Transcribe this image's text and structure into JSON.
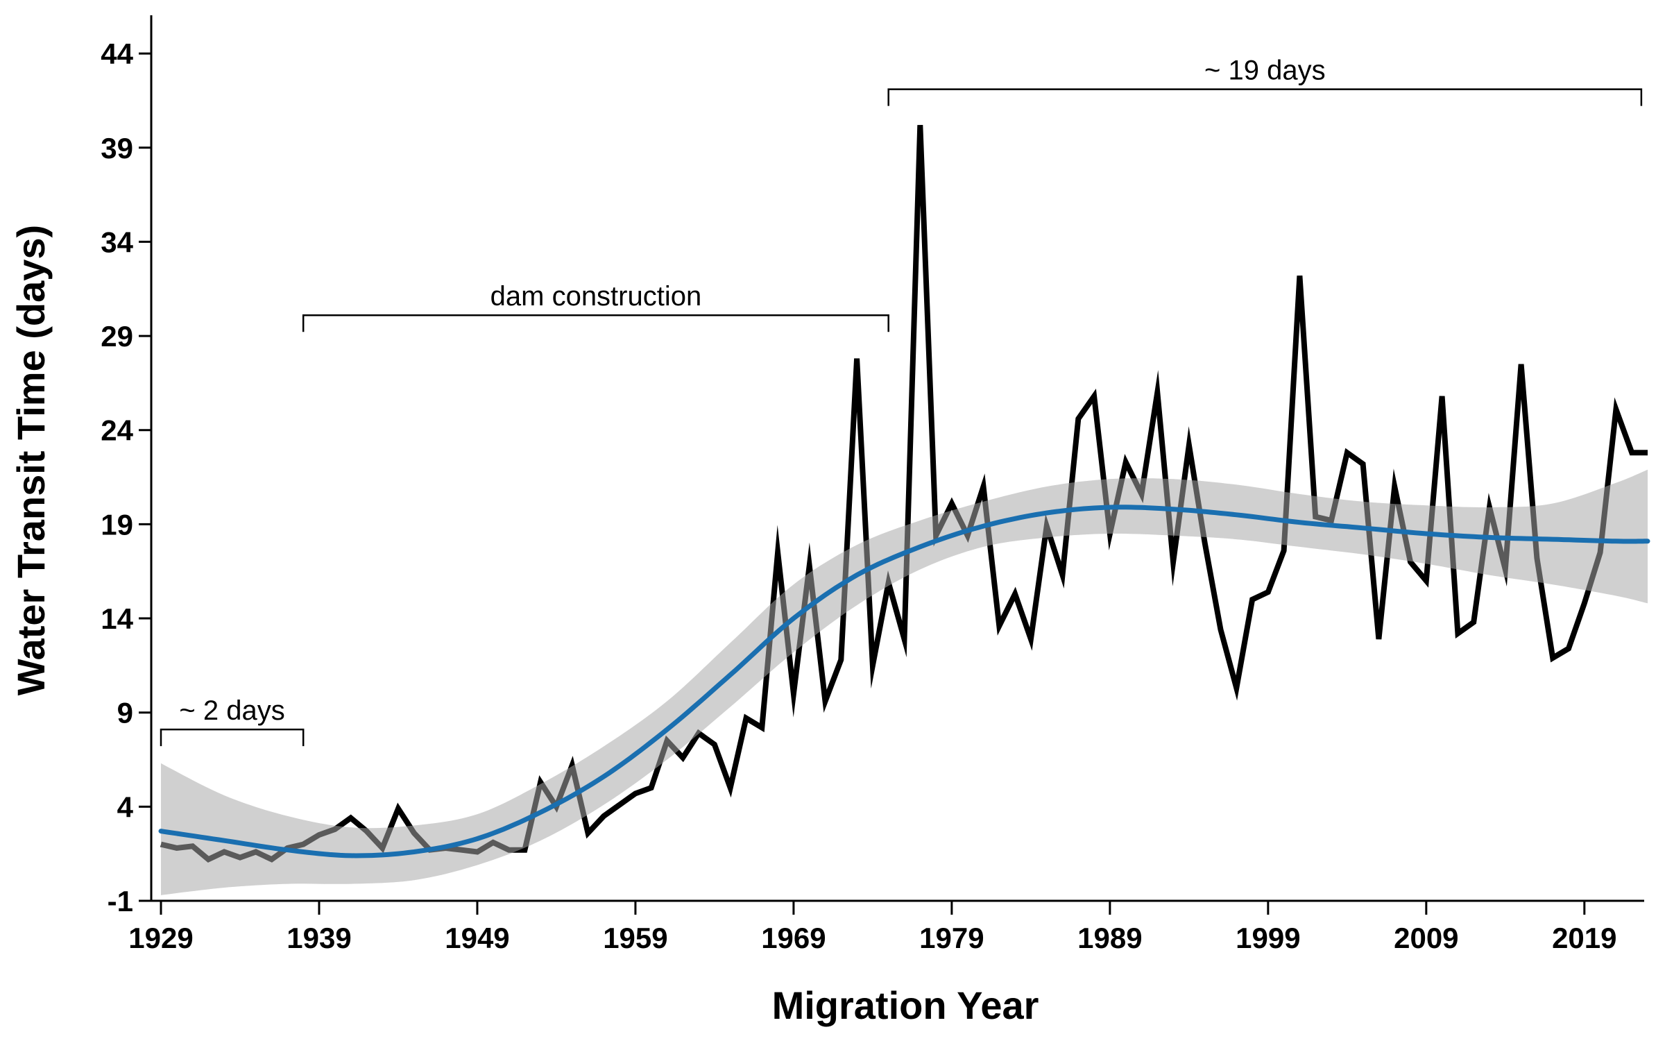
{
  "chart_data": {
    "type": "line",
    "title": "",
    "xlabel": "Migration Year",
    "ylabel": "Water Transit Time (days)",
    "xlim": [
      1929,
      2023
    ],
    "ylim": [
      -1,
      45
    ],
    "xticks": [
      1929,
      1939,
      1949,
      1959,
      1969,
      1979,
      1989,
      1999,
      2009,
      2019
    ],
    "yticks": [
      -1,
      4,
      9,
      14,
      19,
      24,
      29,
      34,
      39,
      44
    ],
    "grid": false,
    "colors": {
      "observed": "#000000",
      "trend": "#1a6fb0",
      "band": "#d3d3d3"
    },
    "series": [
      {
        "kind": "observed",
        "x": [
          1929,
          1930,
          1931,
          1932,
          1933,
          1934,
          1935,
          1936,
          1937,
          1938,
          1939,
          1940,
          1941,
          1942,
          1943,
          1944,
          1945,
          1946,
          1947,
          1948,
          1949,
          1950,
          1951,
          1952,
          1953,
          1954,
          1955,
          1956,
          1957,
          1958,
          1959,
          1960,
          1961,
          1962,
          1963,
          1964,
          1965,
          1966,
          1967,
          1968,
          1969,
          1970,
          1971,
          1972,
          1973,
          1974,
          1975,
          1976,
          1977,
          1978,
          1979,
          1980,
          1981,
          1982,
          1983,
          1984,
          1985,
          1986,
          1987,
          1988,
          1989,
          1990,
          1991,
          1992,
          1993,
          1994,
          1995,
          1996,
          1997,
          1998,
          1999,
          2000,
          2001,
          2002,
          2003,
          2004,
          2005,
          2006,
          2007,
          2008,
          2009,
          2010,
          2011,
          2012,
          2013,
          2014,
          2015,
          2016,
          2017,
          2018,
          2019,
          2020,
          2021,
          2022,
          2023
        ],
        "y": [
          2.0,
          1.8,
          1.9,
          1.2,
          1.6,
          1.3,
          1.6,
          1.2,
          1.8,
          2.0,
          2.5,
          2.8,
          3.4,
          2.7,
          1.8,
          3.9,
          2.6,
          1.7,
          1.8,
          1.7,
          1.6,
          2.1,
          1.7,
          1.7,
          5.3,
          4.0,
          6.2,
          2.6,
          3.5,
          4.1,
          4.7,
          5.0,
          7.5,
          6.6,
          7.9,
          7.3,
          5.0,
          8.7,
          8.2,
          17.5,
          10.0,
          16.8,
          9.6,
          11.8,
          27.8,
          11.5,
          15.9,
          12.9,
          40.2,
          18.4,
          20.1,
          18.4,
          21.0,
          13.6,
          15.3,
          12.9,
          18.9,
          16.3,
          24.6,
          25.8,
          18.5,
          22.3,
          20.6,
          26.0,
          17.0,
          23.2,
          18.0,
          13.4,
          10.3,
          15.0,
          15.4,
          17.6,
          32.2,
          19.4,
          19.2,
          22.8,
          22.2,
          12.9,
          21.0,
          17.0,
          16.0,
          25.8,
          13.2,
          13.8,
          19.9,
          16.6,
          27.5,
          17.2,
          11.9,
          12.4,
          14.8,
          17.5,
          25.1,
          22.8,
          22.8
        ]
      },
      {
        "kind": "trend",
        "x": [
          1929,
          1933,
          1937,
          1941,
          1945,
          1949,
          1953,
          1957,
          1961,
          1965,
          1969,
          1973,
          1977,
          1981,
          1985,
          1989,
          1993,
          1997,
          2001,
          2005,
          2009,
          2013,
          2017,
          2021,
          2023
        ],
        "y": [
          2.7,
          2.2,
          1.7,
          1.4,
          1.6,
          2.3,
          3.7,
          5.6,
          8.1,
          11.0,
          14.0,
          16.3,
          17.8,
          18.9,
          19.6,
          19.9,
          19.8,
          19.5,
          19.1,
          18.8,
          18.5,
          18.3,
          18.2,
          18.1,
          18.1
        ],
        "lower": [
          -0.7,
          -0.3,
          -0.1,
          -0.1,
          0.1,
          0.9,
          2.2,
          4.1,
          6.5,
          9.3,
          12.2,
          14.7,
          16.6,
          17.8,
          18.3,
          18.5,
          18.4,
          18.2,
          17.8,
          17.4,
          16.9,
          16.3,
          15.8,
          15.2,
          14.8
        ],
        "upper": [
          6.3,
          4.6,
          3.5,
          2.9,
          3.0,
          3.6,
          5.2,
          7.2,
          9.6,
          12.7,
          15.8,
          17.9,
          19.2,
          20.2,
          21.0,
          21.4,
          21.4,
          21.1,
          20.6,
          20.2,
          20.0,
          19.9,
          20.1,
          21.2,
          21.9
        ]
      }
    ],
    "annotations": [
      {
        "label": "~ 2 days",
        "x_start": 1929,
        "x_end": 1938,
        "y": 8.1
      },
      {
        "label": "dam construction",
        "x_start": 1938,
        "x_end": 1975,
        "y": 30.1
      },
      {
        "label": "~ 19 days",
        "x_start": 1975,
        "x_end": 2022.6,
        "y": 42.1
      }
    ]
  }
}
